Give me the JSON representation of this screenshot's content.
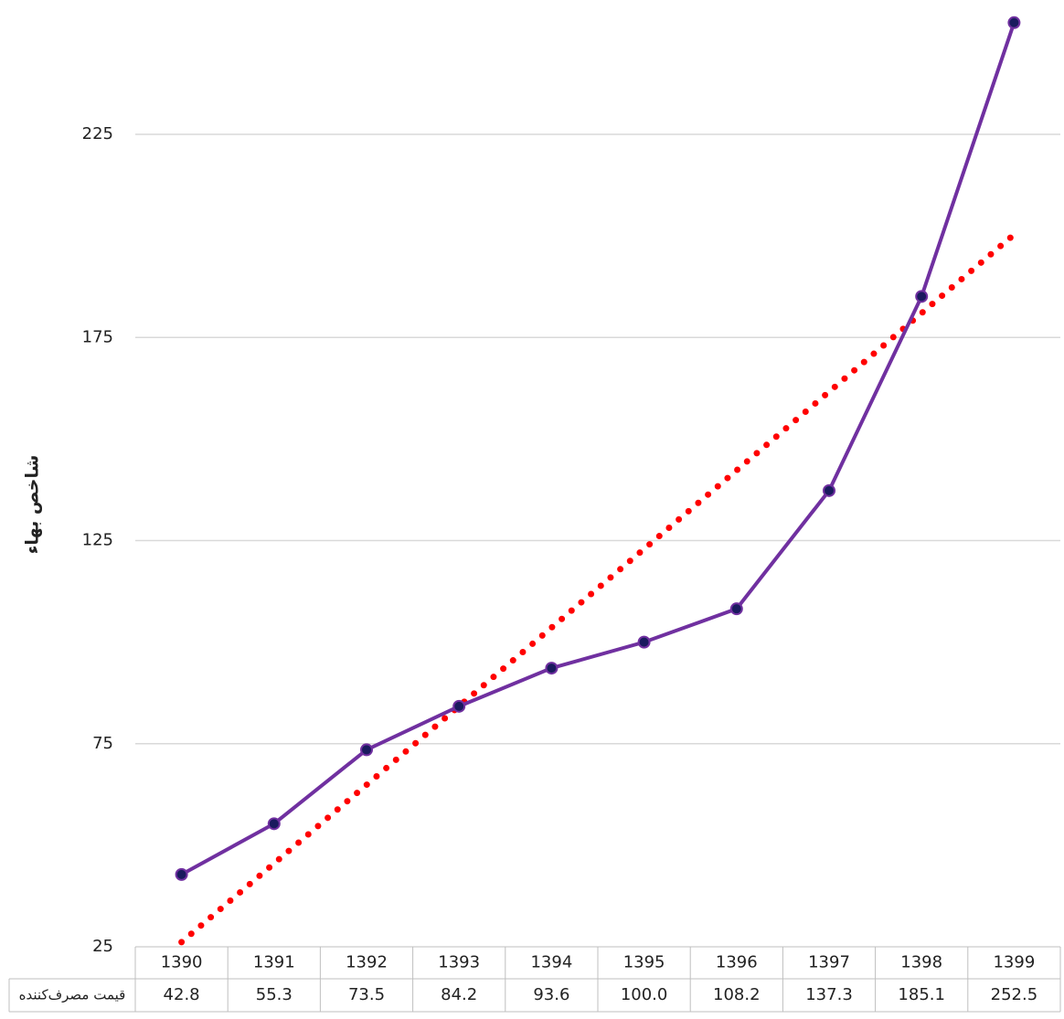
{
  "chart_data": {
    "type": "line",
    "y_label": "شاخص بهاء",
    "categories": [
      "1390",
      "1391",
      "1392",
      "1393",
      "1394",
      "1395",
      "1396",
      "1397",
      "1398",
      "1399"
    ],
    "series": [
      {
        "name": "قیمت مصرف‌کننده",
        "color": "#7030a0",
        "marker_color": "#1a1a5e",
        "values": [
          42.8,
          55.3,
          73.5,
          84.2,
          93.6,
          100.0,
          108.2,
          137.3,
          185.1,
          252.5
        ],
        "value_labels": [
          "42.8",
          "55.3",
          "73.5",
          "84.2",
          "93.6",
          "100.0",
          "108.2",
          "137.3",
          "185.1",
          "252.5"
        ]
      }
    ],
    "trendline": {
      "type": "linear",
      "color": "#ff0000"
    },
    "ylim": [
      25,
      257
    ],
    "yticks": [
      25,
      75,
      125,
      175,
      225
    ],
    "grid": true,
    "data_table": true
  }
}
